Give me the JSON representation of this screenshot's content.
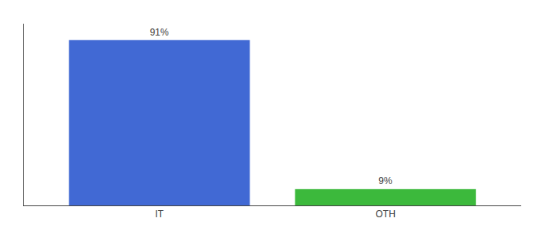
{
  "chart_data": {
    "type": "bar",
    "categories": [
      "IT",
      "OTH"
    ],
    "values": [
      91,
      9
    ],
    "value_labels": [
      "91%",
      "9%"
    ],
    "colors": [
      "#4169d4",
      "#3cb93c"
    ],
    "ylim": [
      0,
      100
    ],
    "grid": false,
    "data_labels": true,
    "tick_labels": "x"
  }
}
